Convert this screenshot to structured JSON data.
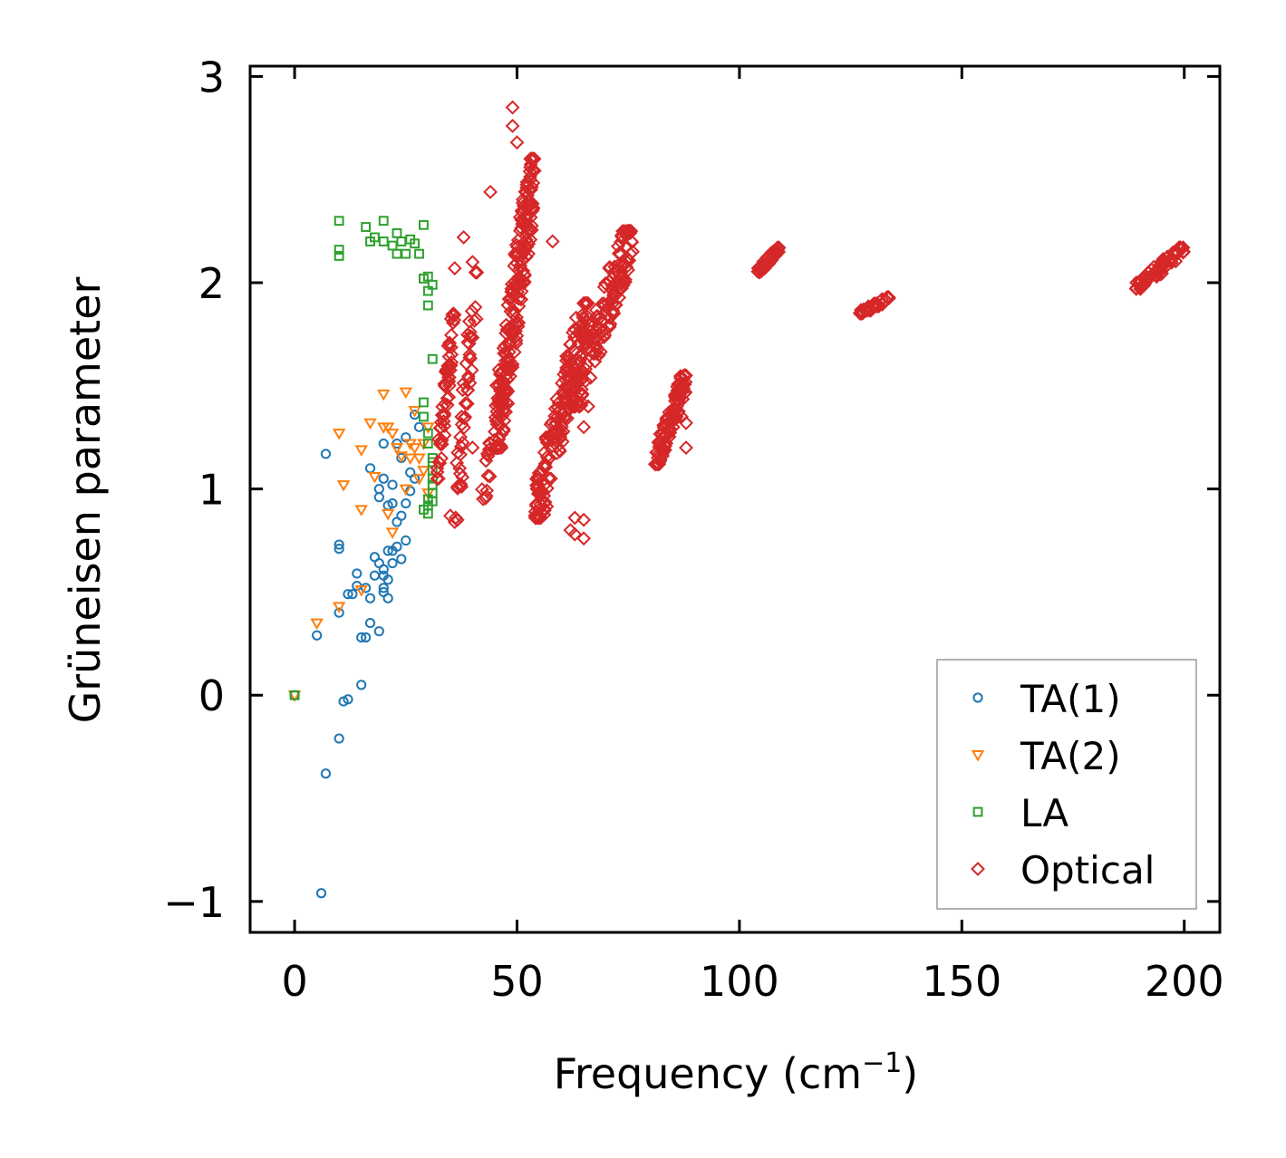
{
  "chart_data": {
    "type": "scatter",
    "title": "",
    "xlabel": "Frequency (cm",
    "xlabel_sup": "−1",
    "xlabel_close": ")",
    "ylabel": "Grüneisen parameter",
    "xlim": [
      -10,
      208
    ],
    "ylim": [
      -1.15,
      3.05
    ],
    "xticks": [
      0,
      50,
      100,
      150,
      200
    ],
    "xtick_labels": [
      "0",
      "50",
      "100",
      "150",
      "200"
    ],
    "yticks": [
      -1,
      0,
      1,
      2,
      3
    ],
    "ytick_labels": [
      "−1",
      "0",
      "1",
      "2",
      "3"
    ],
    "legend_position": "lower-right",
    "series": [
      {
        "name": "TA(1)",
        "color": "#1f77b4",
        "marker": "circle",
        "points": [
          [
            0,
            0
          ],
          [
            5,
            0.29
          ],
          [
            6,
            -0.96
          ],
          [
            7,
            -0.38
          ],
          [
            7,
            1.17
          ],
          [
            10,
            0.4
          ],
          [
            10,
            0.71
          ],
          [
            10,
            0.73
          ],
          [
            10,
            -0.21
          ],
          [
            11,
            -0.03
          ],
          [
            12,
            0.49
          ],
          [
            12,
            -0.02
          ],
          [
            13,
            0.49
          ],
          [
            14,
            0.59
          ],
          [
            14,
            0.53
          ],
          [
            15,
            0.05
          ],
          [
            15,
            0.28
          ],
          [
            16,
            0.28
          ],
          [
            16,
            0.52
          ],
          [
            17,
            0.47
          ],
          [
            17,
            0.35
          ],
          [
            17,
            1.1
          ],
          [
            18,
            0.58
          ],
          [
            18,
            0.67
          ],
          [
            19,
            0.31
          ],
          [
            19,
            1.0
          ],
          [
            19,
            0.64
          ],
          [
            19,
            0.96
          ],
          [
            20,
            0.52
          ],
          [
            20,
            0.61
          ],
          [
            20,
            0.58
          ],
          [
            20,
            1.05
          ],
          [
            20,
            1.22
          ],
          [
            20,
            0.5
          ],
          [
            21,
            0.56
          ],
          [
            21,
            0.7
          ],
          [
            21,
            0.47
          ],
          [
            21,
            0.92
          ],
          [
            22,
            0.64
          ],
          [
            22,
            0.7
          ],
          [
            22,
            1.02
          ],
          [
            22,
            0.93
          ],
          [
            23,
            0.72
          ],
          [
            23,
            0.84
          ],
          [
            23,
            1.22
          ],
          [
            24,
            0.66
          ],
          [
            24,
            0.87
          ],
          [
            24,
            1.15
          ],
          [
            25,
            0.75
          ],
          [
            25,
            0.93
          ],
          [
            25,
            1.25
          ],
          [
            26,
            0.99
          ],
          [
            26,
            1.08
          ],
          [
            27,
            1.05
          ],
          [
            27,
            1.36
          ],
          [
            28,
            1.3
          ]
        ]
      },
      {
        "name": "TA(2)",
        "color": "#ff7f0e",
        "marker": "triangle-down",
        "points": [
          [
            0,
            0
          ],
          [
            5,
            0.35
          ],
          [
            10,
            0.43
          ],
          [
            10,
            1.27
          ],
          [
            11,
            1.02
          ],
          [
            15,
            1.19
          ],
          [
            15,
            0.9
          ],
          [
            15,
            0.51
          ],
          [
            17,
            1.32
          ],
          [
            18,
            1.06
          ],
          [
            20,
            1.3
          ],
          [
            20,
            1.46
          ],
          [
            21,
            1.3
          ],
          [
            21,
            0.88
          ],
          [
            22,
            0.79
          ],
          [
            22,
            1.27
          ],
          [
            23,
            1.2
          ],
          [
            24,
            1.16
          ],
          [
            25,
            1.0
          ],
          [
            25,
            1.47
          ],
          [
            26,
            1.22
          ],
          [
            26,
            1.15
          ],
          [
            27,
            1.38
          ],
          [
            27,
            1.2
          ],
          [
            28,
            1.15
          ],
          [
            28,
            1.05
          ],
          [
            29,
            1.22
          ],
          [
            29,
            1.09
          ],
          [
            30,
            1.3
          ],
          [
            30,
            0.98
          ]
        ]
      },
      {
        "name": "LA",
        "color": "#2ca02c",
        "marker": "square",
        "points": [
          [
            0,
            0
          ],
          [
            10,
            2.3
          ],
          [
            10,
            2.16
          ],
          [
            10,
            2.13
          ],
          [
            16,
            2.27
          ],
          [
            17,
            2.2
          ],
          [
            18,
            2.22
          ],
          [
            20,
            2.3
          ],
          [
            20,
            2.2
          ],
          [
            22,
            2.18
          ],
          [
            23,
            2.14
          ],
          [
            23,
            2.24
          ],
          [
            24,
            2.2
          ],
          [
            25,
            2.14
          ],
          [
            26,
            2.21
          ],
          [
            27,
            2.19
          ],
          [
            28,
            2.14
          ],
          [
            29,
            2.28
          ],
          [
            29,
            2.02
          ],
          [
            30,
            1.89
          ],
          [
            30,
            1.96
          ],
          [
            30,
            2.03
          ],
          [
            31,
            1.99
          ],
          [
            31,
            1.63
          ],
          [
            29,
            1.42
          ],
          [
            29,
            1.35
          ],
          [
            30,
            1.27
          ],
          [
            30,
            1.22
          ],
          [
            31,
            1.13
          ],
          [
            31,
            1.09
          ],
          [
            31,
            1.05
          ],
          [
            31,
            1.02
          ],
          [
            31,
            0.98
          ],
          [
            30,
            0.95
          ],
          [
            30,
            0.92
          ],
          [
            29,
            0.9
          ],
          [
            30,
            0.88
          ],
          [
            31,
            0.94
          ],
          [
            31,
            1.15
          ]
        ]
      },
      {
        "name": "Optical",
        "color": "#d62728",
        "marker": "diamond",
        "clusters": [
          {
            "x": [
              32,
              36
            ],
            "y": [
              1.05,
              1.85
            ],
            "n": 60
          },
          {
            "x": [
              36,
              41
            ],
            "y": [
              0.85,
              2.05
            ],
            "n": 50
          },
          {
            "x": [
              42,
              48
            ],
            "y": [
              0.95,
              1.55
            ],
            "n": 35
          },
          {
            "x": [
              45,
              54
            ],
            "y": [
              1.2,
              2.6
            ],
            "n": 220
          },
          {
            "x": [
              54,
              66
            ],
            "y": [
              0.86,
              1.9
            ],
            "n": 180
          },
          {
            "x": [
              62,
              76
            ],
            "y": [
              1.4,
              2.25
            ],
            "n": 160
          },
          {
            "x": [
              81,
              88
            ],
            "y": [
              1.12,
              1.55
            ],
            "n": 110
          },
          {
            "x": [
              104,
              109
            ],
            "y": [
              2.05,
              2.17
            ],
            "n": 40
          },
          {
            "x": [
              127,
              134
            ],
            "y": [
              1.85,
              1.93
            ],
            "n": 40
          },
          {
            "x": [
              189,
              200
            ],
            "y": [
              1.97,
              2.17
            ],
            "n": 60
          }
        ],
        "points": [
          [
            49,
            2.85
          ],
          [
            49,
            2.76
          ],
          [
            50,
            2.68
          ],
          [
            44,
            2.44
          ],
          [
            38,
            2.22
          ],
          [
            40,
            2.1
          ],
          [
            58,
            2.2
          ],
          [
            41,
            2.05
          ],
          [
            36,
            2.07
          ],
          [
            66,
            1.4
          ],
          [
            65,
            1.3
          ],
          [
            63,
            0.86
          ],
          [
            65,
            0.85
          ],
          [
            62,
            0.8
          ],
          [
            63,
            0.78
          ],
          [
            65,
            0.76
          ],
          [
            88,
            1.32
          ],
          [
            88,
            1.2
          ],
          [
            87,
            1.35
          ],
          [
            47,
            1.29
          ],
          [
            40,
            1.2
          ],
          [
            35,
            0.87
          ],
          [
            36,
            0.84
          ]
        ]
      }
    ]
  }
}
